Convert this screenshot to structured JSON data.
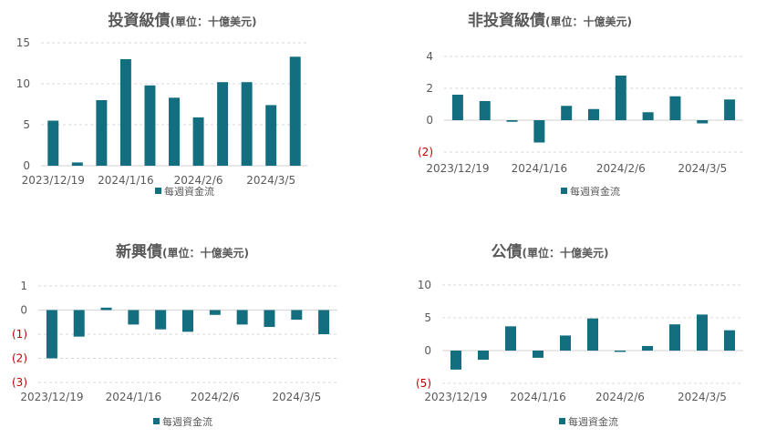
{
  "chart_data": [
    {
      "type": "bar",
      "title": "投資級債",
      "unit": "(單位：十億美元)",
      "x_tick_labels": [
        "2023/12/19",
        "2024/1/16",
        "2024/2/6",
        "2024/3/5"
      ],
      "y_ticks": [
        0,
        5,
        10,
        15
      ],
      "ylim": [
        0,
        15
      ],
      "grid": true,
      "legend": "bottom",
      "series": [
        {
          "name": "每週資金流",
          "values": [
            5.5,
            0.4,
            8.0,
            13.0,
            9.8,
            8.3,
            5.9,
            10.2,
            10.2,
            7.4,
            13.3
          ]
        }
      ]
    },
    {
      "type": "bar",
      "title": "非投資級債",
      "unit": "(單位：十億美元)",
      "x_tick_labels": [
        "2023/12/19",
        "2024/1/16",
        "2024/2/6",
        "2024/3/5"
      ],
      "y_ticks": [
        -2,
        0,
        2,
        4
      ],
      "y_tick_labels": [
        "(2)",
        "0",
        "2",
        "4"
      ],
      "ylim": [
        -2,
        4
      ],
      "grid": true,
      "legend": "bottom",
      "series": [
        {
          "name": "每週資金流",
          "values": [
            1.6,
            1.2,
            -0.1,
            -1.4,
            0.9,
            0.7,
            2.8,
            0.5,
            1.5,
            -0.2,
            1.3
          ]
        }
      ]
    },
    {
      "type": "bar",
      "title": "新興債",
      "unit": "(單位：十億美元)",
      "x_tick_labels": [
        "2023/12/19",
        "2024/1/16",
        "2024/2/6",
        "2024/3/5"
      ],
      "y_ticks": [
        -3,
        -2,
        -1,
        0,
        1
      ],
      "y_tick_labels": [
        "(3)",
        "(2)",
        "(1)",
        "0",
        "1"
      ],
      "ylim": [
        -3,
        1
      ],
      "grid": true,
      "legend": "bottom",
      "series": [
        {
          "name": "每週資金流",
          "values": [
            -2.0,
            -1.1,
            0.1,
            -0.6,
            -0.8,
            -0.9,
            -0.2,
            -0.6,
            -0.7,
            -0.4,
            -1.0
          ]
        }
      ]
    },
    {
      "type": "bar",
      "title": "公債",
      "unit": "(單位：十億美元)",
      "x_tick_labels": [
        "2023/12/19",
        "2024/1/16",
        "2024/2/6",
        "2024/3/5"
      ],
      "y_ticks": [
        -5,
        0,
        5,
        10
      ],
      "y_tick_labels": [
        "(5)",
        "0",
        "5",
        "10"
      ],
      "ylim": [
        -5,
        10
      ],
      "grid": true,
      "legend": "bottom",
      "series": [
        {
          "name": "每週資金流",
          "values": [
            -2.9,
            -1.4,
            3.7,
            -1.1,
            2.3,
            4.9,
            -0.2,
            0.7,
            4.0,
            5.5,
            3.1
          ]
        }
      ]
    }
  ],
  "colors": {
    "bar": "#136f80",
    "negative_label": "#c00000",
    "tick": "#595959",
    "grid": "#d9d9d9"
  }
}
